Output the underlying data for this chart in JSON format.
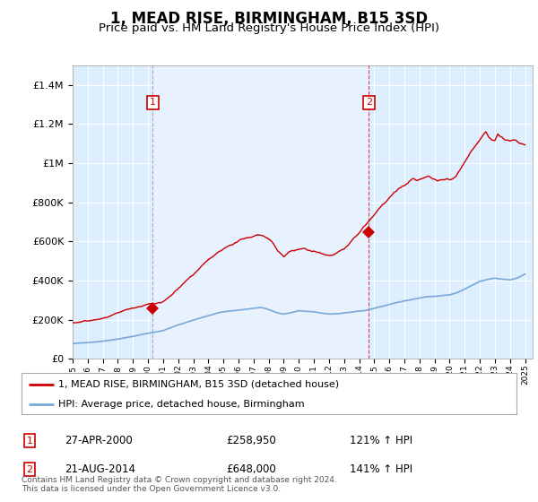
{
  "title": "1, MEAD RISE, BIRMINGHAM, B15 3SD",
  "subtitle": "Price paid vs. HM Land Registry's House Price Index (HPI)",
  "title_fontsize": 12,
  "subtitle_fontsize": 9.5,
  "background_color": "#ffffff",
  "plot_background_color": "#ddeeff",
  "plot_background_color2": "#e8f2ff",
  "grid_color": "#ffffff",
  "ylabel_ticks": [
    "£0",
    "£200K",
    "£400K",
    "£600K",
    "£800K",
    "£1M",
    "£1.2M",
    "£1.4M"
  ],
  "ytick_values": [
    0,
    200000,
    400000,
    600000,
    800000,
    1000000,
    1200000,
    1400000
  ],
  "ylim": [
    0,
    1500000
  ],
  "xlim_start": 1995.0,
  "xlim_end": 2025.5,
  "red_line_color": "#cc0000",
  "blue_line_color": "#7aa8d8",
  "sale1_x": 2000.32,
  "sale1_y": 258950,
  "sale1_label": "1",
  "sale1_date": "27-APR-2000",
  "sale1_price": "£258,950",
  "sale1_hpi": "121% ↑ HPI",
  "sale2_x": 2014.64,
  "sale2_y": 648000,
  "sale2_label": "2",
  "sale2_date": "21-AUG-2014",
  "sale2_price": "£648,000",
  "sale2_hpi": "141% ↑ HPI",
  "legend_line1": "1, MEAD RISE, BIRMINGHAM, B15 3SD (detached house)",
  "legend_line2": "HPI: Average price, detached house, Birmingham",
  "footnote": "Contains HM Land Registry data © Crown copyright and database right 2024.\nThis data is licensed under the Open Government Licence v3.0.",
  "xtick_years": [
    1995,
    1996,
    1997,
    1998,
    1999,
    2000,
    2001,
    2002,
    2003,
    2004,
    2005,
    2006,
    2007,
    2008,
    2009,
    2010,
    2011,
    2012,
    2013,
    2014,
    2015,
    2016,
    2017,
    2018,
    2019,
    2020,
    2021,
    2022,
    2023,
    2024,
    2025
  ]
}
